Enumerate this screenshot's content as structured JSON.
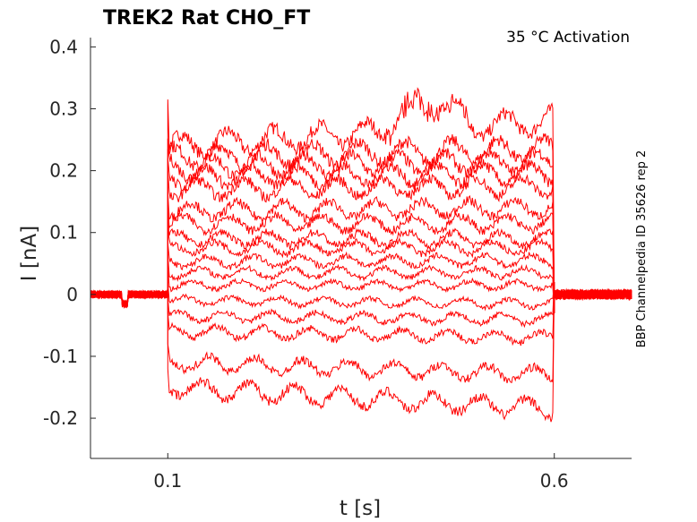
{
  "chart_data": {
    "type": "line",
    "title": "TREK2  Rat  CHO_FT",
    "annotation": "35 °C  Activation",
    "side_label": "BBP Channelpedia ID 35626 rep 2",
    "xlabel": "t [s]",
    "ylabel": "I [nA]",
    "xlim": [
      0.0,
      0.7
    ],
    "ylim": [
      -0.265,
      0.415
    ],
    "xticks": [
      {
        "value": 0.1,
        "label": "0.1"
      },
      {
        "value": 0.6,
        "label": "0.6"
      }
    ],
    "yticks": [
      {
        "value": 0.4,
        "label": "0.4"
      },
      {
        "value": 0.3,
        "label": "0.3"
      },
      {
        "value": 0.2,
        "label": "0.2"
      },
      {
        "value": 0.1,
        "label": "0.1"
      },
      {
        "value": 0,
        "label": "0"
      },
      {
        "value": -0.1,
        "label": "-0.1"
      },
      {
        "value": -0.2,
        "label": "-0.2"
      }
    ],
    "grid": false,
    "legend": "none",
    "color": "#ff0000",
    "pulse": {
      "start": 0.1,
      "end": 0.6,
      "onset_peak": 0.315
    },
    "series": [
      {
        "start": 0.24,
        "end": 0.28
      },
      {
        "start": 0.222,
        "end": 0.235
      },
      {
        "start": 0.205,
        "end": 0.215
      },
      {
        "start": 0.19,
        "end": 0.195
      },
      {
        "start": 0.17,
        "end": 0.175
      },
      {
        "start": 0.135,
        "end": 0.14
      },
      {
        "start": 0.115,
        "end": 0.115
      },
      {
        "start": 0.09,
        "end": 0.09
      },
      {
        "start": 0.075,
        "end": 0.075
      },
      {
        "start": 0.053,
        "end": 0.055
      },
      {
        "start": 0.035,
        "end": 0.035
      },
      {
        "start": 0.015,
        "end": 0.015
      },
      {
        "start": -0.01,
        "end": -0.015
      },
      {
        "start": -0.035,
        "end": -0.04
      },
      {
        "start": -0.06,
        "end": -0.07
      },
      {
        "start": -0.11,
        "end": -0.13
      },
      {
        "start": -0.15,
        "end": -0.185
      }
    ]
  }
}
